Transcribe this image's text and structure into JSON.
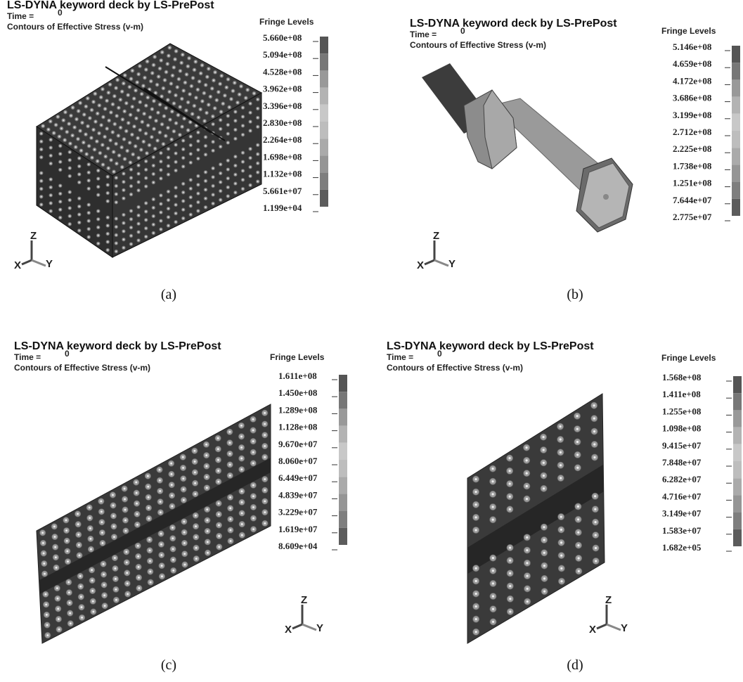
{
  "panels": [
    {
      "title": "LS-DYNA keyword deck by LS-PrePost",
      "time_label": "Time =",
      "time_value": "0",
      "contour_label": "Contours of Effective Stress (v-m)",
      "fringe_title": "Fringe Levels",
      "levels": [
        "5.660e+08",
        "5.094e+08",
        "4.528e+08",
        "3.962e+08",
        "3.396e+08",
        "2.830e+08",
        "2.264e+08",
        "1.698e+08",
        "1.132e+08",
        "5.661e+07",
        "1.199e+04"
      ],
      "triad": {
        "z": "Z",
        "x": "X",
        "y": "Y"
      },
      "caption": "(a)"
    },
    {
      "title": "LS-DYNA keyword deck by LS-PrePost",
      "time_label": "Time =",
      "time_value": "0",
      "contour_label": "Contours of Effective Stress (v-m)",
      "fringe_title": "Fringe Levels",
      "levels": [
        "5.146e+08",
        "4.659e+08",
        "4.172e+08",
        "3.686e+08",
        "3.199e+08",
        "2.712e+08",
        "2.225e+08",
        "1.738e+08",
        "1.251e+08",
        "7.644e+07",
        "2.775e+07"
      ],
      "triad": {
        "z": "Z",
        "x": "X",
        "y": "Y"
      },
      "caption": "(b)"
    },
    {
      "title": "LS-DYNA keyword deck by LS-PrePost",
      "time_label": "Time =",
      "time_value": "0",
      "contour_label": "Contours of Effective Stress (v-m)",
      "fringe_title": "Fringe Levels",
      "levels": [
        "1.611e+08",
        "1.450e+08",
        "1.289e+08",
        "1.128e+08",
        "9.670e+07",
        "8.060e+07",
        "6.449e+07",
        "4.839e+07",
        "3.229e+07",
        "1.619e+07",
        "8.609e+04"
      ],
      "triad": {
        "z": "Z",
        "x": "X",
        "y": "Y"
      },
      "caption": "(c)"
    },
    {
      "title": "LS-DYNA keyword deck by LS-PrePost",
      "time_label": "Time =",
      "time_value": "0",
      "contour_label": "Contours of Effective Stress (v-m)",
      "fringe_title": "Fringe Levels",
      "levels": [
        "1.568e+08",
        "1.411e+08",
        "1.255e+08",
        "1.098e+08",
        "9.415e+07",
        "7.848e+07",
        "6.282e+07",
        "4.716e+07",
        "3.149e+07",
        "1.583e+07",
        "1.682e+05"
      ],
      "triad": {
        "z": "Z",
        "x": "X",
        "y": "Y"
      },
      "caption": "(d)"
    }
  ]
}
